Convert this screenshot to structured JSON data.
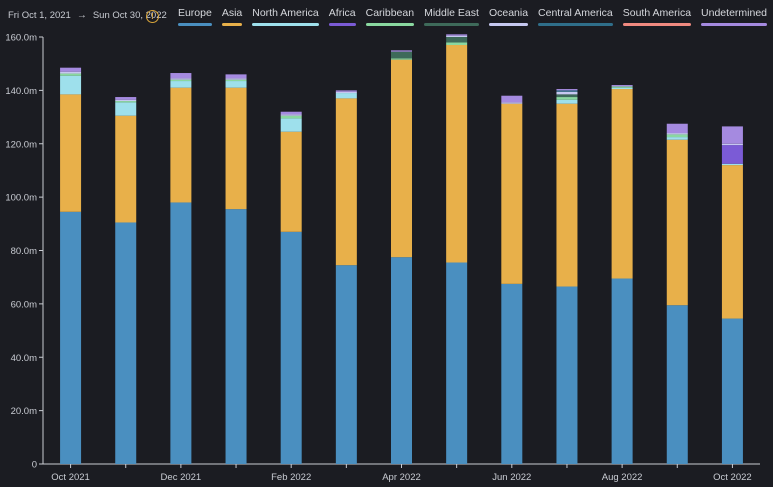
{
  "header": {
    "start_date": "Fri Oct 1, 2021",
    "end_date": "Sun Oct 30, 2022",
    "arrow": "→",
    "info_glyph": "!"
  },
  "chart_data": {
    "type": "bar",
    "stacked": true,
    "categories": [
      "Oct 2021",
      "Nov 2021",
      "Dec 2021",
      "Jan 2022",
      "Feb 2022",
      "Mar 2022",
      "Apr 2022",
      "May 2022",
      "Jun 2022",
      "Jul 2022",
      "Aug 2022",
      "Sep 2022",
      "Oct 2022"
    ],
    "x_tick_labels": [
      "Oct 2021",
      "",
      "Dec 2021",
      "",
      "Feb 2022",
      "",
      "Apr 2022",
      "",
      "Jun 2022",
      "",
      "Aug 2022",
      "",
      "Oct 2022"
    ],
    "y_ticks": [
      0,
      20,
      40,
      60,
      80,
      100,
      120,
      140,
      160
    ],
    "y_tick_labels": [
      "0",
      "20.0m",
      "40.0m",
      "60.0m",
      "80.0m",
      "100.0m",
      "120.0m",
      "140.0m",
      "160.0m"
    ],
    "ylim": [
      0,
      160
    ],
    "unit": "m",
    "legend_position": "top-right",
    "series": [
      {
        "name": "Europe",
        "color": "#4a8fc0",
        "values": [
          94.5,
          90.5,
          98,
          95.5,
          87,
          74.5,
          77.5,
          75.5,
          67.5,
          66.5,
          69.5,
          59.5,
          54.5
        ]
      },
      {
        "name": "Asia",
        "color": "#e8b04a",
        "values": [
          44,
          40,
          43,
          45.5,
          37.5,
          62.5,
          74,
          81.5,
          67.5,
          68.5,
          71,
          62,
          57.5
        ]
      },
      {
        "name": "North America",
        "color": "#9ee0ec",
        "values": [
          7,
          5,
          2.5,
          2.5,
          5,
          2,
          0,
          0,
          0,
          1.5,
          0.5,
          1,
          0.5
        ]
      },
      {
        "name": "Africa",
        "color": "#7b5bd6",
        "values": [
          0,
          0,
          0,
          0,
          0,
          0,
          0,
          0,
          0,
          0,
          0,
          0,
          7
        ]
      },
      {
        "name": "Caribbean",
        "color": "#8ad8a0",
        "values": [
          0.8,
          0.5,
          0.5,
          0.5,
          1,
          0,
          0.5,
          1,
          0,
          1,
          0.5,
          1,
          0
        ]
      },
      {
        "name": "Middle East",
        "color": "#3e6a5a",
        "values": [
          0,
          0,
          0,
          0,
          0,
          0,
          2.5,
          2,
          0,
          1,
          0,
          0,
          0
        ]
      },
      {
        "name": "Oceania",
        "color": "#c6c8f0",
        "values": [
          0.7,
          0.5,
          0.5,
          0.5,
          0.5,
          0.5,
          0,
          0.5,
          0.5,
          1,
          0,
          0.5,
          0.5
        ]
      },
      {
        "name": "Central America",
        "color": "#2f6e8a",
        "values": [
          0,
          0,
          0,
          0,
          0,
          0,
          0,
          0,
          0,
          0.5,
          0,
          0,
          0
        ]
      },
      {
        "name": "South America",
        "color": "#f08a80",
        "values": [
          0,
          0,
          0,
          0,
          0,
          0,
          0,
          0,
          0,
          0,
          0,
          0,
          0
        ]
      },
      {
        "name": "Undetermined",
        "color": "#a58ae0",
        "values": [
          1.5,
          1,
          2,
          1.5,
          1,
          0.5,
          0.5,
          0.5,
          2.5,
          0.5,
          0.5,
          3.5,
          6.5
        ]
      }
    ]
  }
}
